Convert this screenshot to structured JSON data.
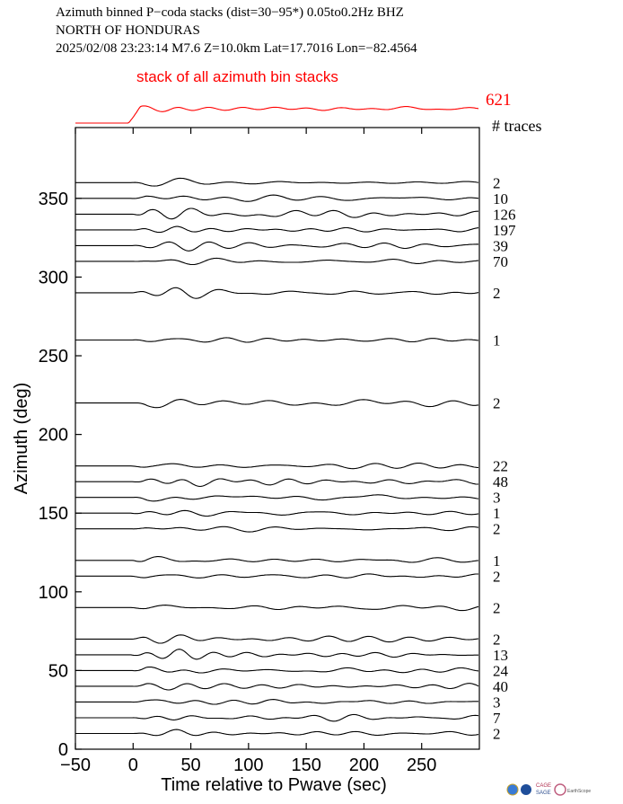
{
  "header": {
    "line1": "Azimuth binned P−coda stacks (dist=30−95*)  0.05to0.2Hz  BHZ",
    "line2": "NORTH OF HONDURAS",
    "line3": "2025/02/08  23:23:14  M7.6  Z=10.0km Lat=17.7016 Lon=−82.4564"
  },
  "stack_label": "stack of all azimuth bin stacks",
  "stack_count": "621",
  "traces_label": "# traces",
  "logos": [
    "globe-logo",
    "nsf-logo",
    "CAGE",
    "SAGE",
    "EarthScope"
  ],
  "chart_data": {
    "type": "line",
    "title": "Azimuth binned P−coda stacks (dist=30−95*)  0.05to0.2Hz  BHZ",
    "xlabel": "Time relative to Pwave (sec)",
    "ylabel": "Azimuth (deg)",
    "xlim": [
      -50,
      300
    ],
    "ylim": [
      0,
      395
    ],
    "xticks": [
      -50,
      0,
      50,
      100,
      150,
      200,
      250
    ],
    "yticks": [
      0,
      50,
      100,
      150,
      200,
      250,
      300,
      350
    ],
    "xtick_labels": [
      "−50",
      "0",
      "50",
      "100",
      "150",
      "200",
      "250"
    ],
    "ytick_labels": [
      "0",
      "50",
      "100",
      "150",
      "200",
      "250",
      "300",
      "350"
    ],
    "series": [
      {
        "azimuth": 360,
        "traces": "2"
      },
      {
        "azimuth": 350,
        "traces": "10"
      },
      {
        "azimuth": 340,
        "traces": "126"
      },
      {
        "azimuth": 330,
        "traces": "197"
      },
      {
        "azimuth": 320,
        "traces": "39"
      },
      {
        "azimuth": 310,
        "traces": "70"
      },
      {
        "azimuth": 290,
        "traces": "2"
      },
      {
        "azimuth": 260,
        "traces": "1"
      },
      {
        "azimuth": 220,
        "traces": "2"
      },
      {
        "azimuth": 180,
        "traces": "22"
      },
      {
        "azimuth": 170,
        "traces": "48"
      },
      {
        "azimuth": 160,
        "traces": "3"
      },
      {
        "azimuth": 150,
        "traces": "1"
      },
      {
        "azimuth": 140,
        "traces": "2"
      },
      {
        "azimuth": 120,
        "traces": "1"
      },
      {
        "azimuth": 110,
        "traces": "2"
      },
      {
        "azimuth": 90,
        "traces": "2"
      },
      {
        "azimuth": 70,
        "traces": "2"
      },
      {
        "azimuth": 60,
        "traces": "13"
      },
      {
        "azimuth": 50,
        "traces": "24"
      },
      {
        "azimuth": 40,
        "traces": "40"
      },
      {
        "azimuth": 30,
        "traces": "3"
      },
      {
        "azimuth": 20,
        "traces": "7"
      },
      {
        "azimuth": 10,
        "traces": "2"
      }
    ]
  }
}
